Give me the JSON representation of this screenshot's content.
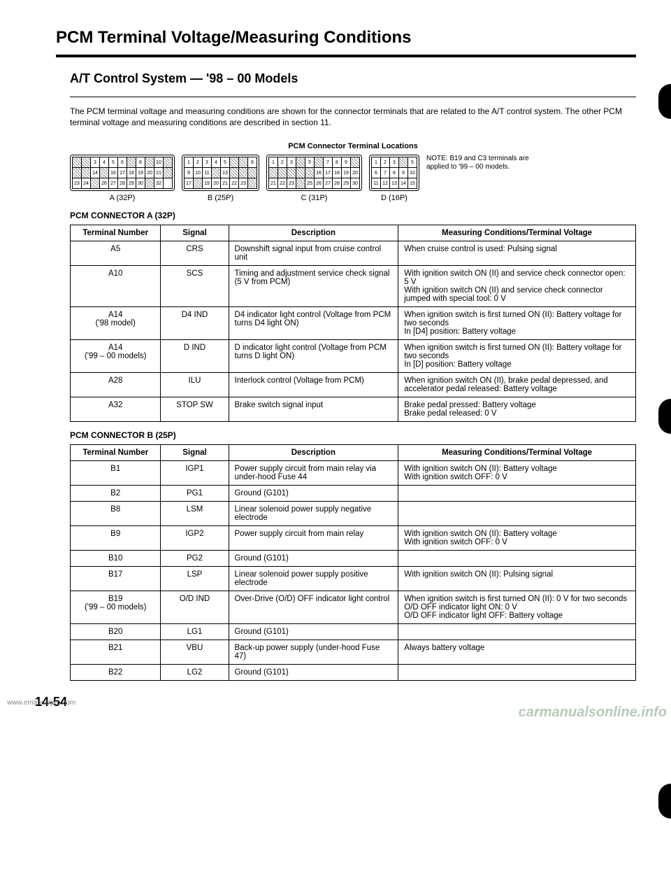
{
  "main_title": "PCM Terminal Voltage/Measuring Conditions",
  "sub_title": "A/T Control System — '98 – 00 Models",
  "intro": "The PCM terminal voltage and measuring conditions are shown for the connector terminals that are related to the A/T control system. The other PCM terminal voltage and measuring conditions are described in section 11.",
  "diagram_caption": "PCM Connector Terminal Locations",
  "connectors": {
    "A": {
      "label": "A (32P)"
    },
    "B": {
      "label": "B (25P)"
    },
    "C": {
      "label": "C (31P)"
    },
    "D": {
      "label": "D (16P)"
    }
  },
  "note": "NOTE: B19 and C3 terminals are applied to '99 – 00 models.",
  "tableA": {
    "heading": "PCM CONNECTOR A (32P)",
    "columns": [
      "Terminal Number",
      "Signal",
      "Description",
      "Measuring Conditions/Terminal Voltage"
    ],
    "rows": [
      {
        "tn": "A5",
        "sig": "CRS",
        "desc": "Downshift signal input from cruise control unit",
        "cond": "When cruise control is used: Pulsing signal"
      },
      {
        "tn": "A10",
        "sig": "SCS",
        "desc": "Timing and adjustment service check signal (5 V from PCM)",
        "cond": "With ignition switch ON (II) and service check connector open: 5 V\nWith ignition switch ON (II) and service check connector jumped with special tool: 0 V"
      },
      {
        "tn": "A14\n('98 model)",
        "sig": "D4 IND",
        "desc": "D4 indicator light control (Voltage from PCM turns D4 light ON)",
        "cond": "When ignition switch is first turned ON (II): Battery voltage for two seconds\nIn [D4] position: Battery voltage"
      },
      {
        "tn": "A14\n('99 – 00 models)",
        "sig": "D IND",
        "desc": "D indicator light control (Voltage from PCM turns D light ON)",
        "cond": "When ignition switch is first turned ON (II): Battery voltage for two seconds\nIn [D] position: Battery voltage"
      },
      {
        "tn": "A28",
        "sig": "ILU",
        "desc": "Interlock control (Voltage from PCM)",
        "cond": "When ignition switch ON (II), brake pedal depressed, and accelerator pedal released: Battery voltage"
      },
      {
        "tn": "A32",
        "sig": "STOP SW",
        "desc": "Brake switch signal input",
        "cond": "Brake pedal pressed: Battery voltage\nBrake pedal released: 0 V"
      }
    ]
  },
  "tableB": {
    "heading": "PCM CONNECTOR B (25P)",
    "columns": [
      "Terminal Number",
      "Signal",
      "Description",
      "Measuring Conditions/Terminal Voltage"
    ],
    "rows": [
      {
        "tn": "B1",
        "sig": "IGP1",
        "desc": "Power supply circuit from main relay via under-hood Fuse 44",
        "cond": "With ignition switch ON (II): Battery voltage\nWith ignition switch OFF: 0 V"
      },
      {
        "tn": "B2",
        "sig": "PG1",
        "desc": "Ground (G101)",
        "cond": ""
      },
      {
        "tn": "B8",
        "sig": "LSM",
        "desc": "Linear solenoid power supply negative electrode",
        "cond": ""
      },
      {
        "tn": "B9",
        "sig": "IGP2",
        "desc": "Power supply circuit from main relay",
        "cond": "With ignition switch ON (II): Battery voltage\nWith ignition switch OFF: 0 V"
      },
      {
        "tn": "B10",
        "sig": "PG2",
        "desc": "Ground (G101)",
        "cond": ""
      },
      {
        "tn": "B17",
        "sig": "LSP",
        "desc": "Linear solenoid power supply positive electrode",
        "cond": "With ignition switch ON (II): Pulsing signal"
      },
      {
        "tn": "B19\n('99 – 00 models)",
        "sig": "O/D IND",
        "desc": "Over-Drive (O/D) OFF indicator light control",
        "cond": "When ignition switch is first turned ON (II): 0 V for two seconds\nO/D OFF indicator light ON: 0 V\nO/D OFF indicator light OFF: Battery voltage"
      },
      {
        "tn": "B20",
        "sig": "LG1",
        "desc": "Ground (G101)",
        "cond": ""
      },
      {
        "tn": "B21",
        "sig": "VBU",
        "desc": "Back-up power supply (under-hood Fuse 47)",
        "cond": "Always battery voltage"
      },
      {
        "tn": "B22",
        "sig": "LG2",
        "desc": "Ground (G101)",
        "cond": ""
      }
    ]
  },
  "page_num": "14-54",
  "watermark_left": "www.emanualpro.com",
  "watermark_right": "carmanualsonline.info"
}
